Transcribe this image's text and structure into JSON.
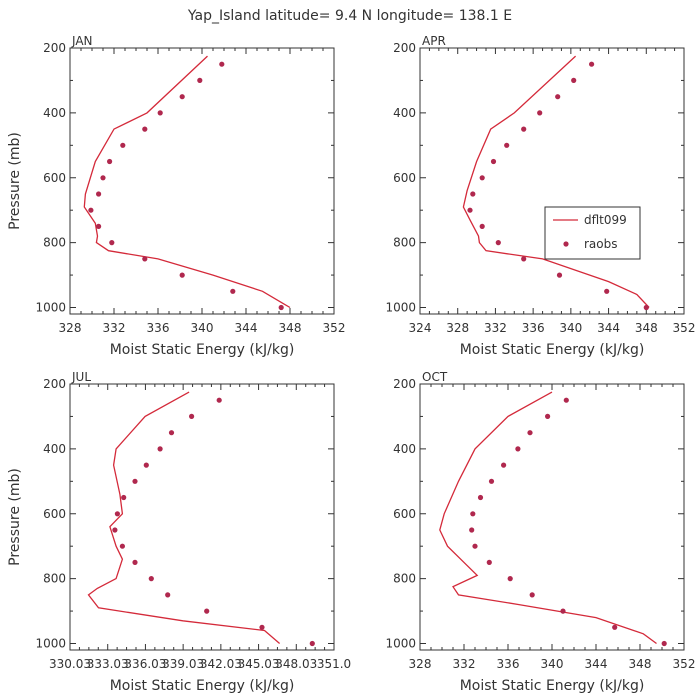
{
  "title": "Yap_Island  latitude= 9.4 N longitude= 138.1 E",
  "legend": {
    "model_label": "dflt099",
    "obs_label": "raobs",
    "model_color": "#d42a3a",
    "obs_color": "#b0284e"
  },
  "chart_data": [
    {
      "type": "line",
      "panel": "JAN",
      "xlabel": "Moist Static Energy (kJ/kg)",
      "ylabel": "Pressure (mb)",
      "xlim": [
        328,
        352
      ],
      "ylim": [
        1020,
        200
      ],
      "xticks": [
        "328",
        "332",
        "336",
        "340",
        "344",
        "348",
        "352"
      ],
      "yticks": [
        "200",
        "400",
        "600",
        "800",
        "1000"
      ],
      "series": [
        {
          "name": "dflt099",
          "kind": "line",
          "x": [
            340.5,
            335,
            332,
            330.3,
            329.4,
            329.3,
            330.3,
            330.5,
            330.4,
            331.5,
            336,
            341,
            345.5,
            347.5,
            348
          ],
          "y": [
            225,
            400,
            450,
            550,
            650,
            690,
            740,
            780,
            800,
            825,
            850,
            900,
            950,
            990,
            1000
          ]
        },
        {
          "name": "raobs",
          "kind": "scatter",
          "x": [
            341.8,
            339.8,
            338.2,
            336.2,
            334.8,
            332.8,
            331.6,
            331,
            330.6,
            329.9,
            330.6,
            331.8,
            334.8,
            338.2,
            342.8,
            347.2
          ],
          "y": [
            250,
            300,
            350,
            400,
            450,
            500,
            550,
            600,
            650,
            700,
            750,
            800,
            850,
            900,
            950,
            1000
          ]
        }
      ]
    },
    {
      "type": "line",
      "panel": "APR",
      "xlabel": "Moist Static Energy (kJ/kg)",
      "ylabel": "",
      "xlim": [
        324,
        352
      ],
      "ylim": [
        1020,
        200
      ],
      "xticks": [
        "324",
        "328",
        "332",
        "336",
        "340",
        "344",
        "348",
        "352"
      ],
      "yticks": [
        "200",
        "400",
        "600",
        "800",
        "1000"
      ],
      "series": [
        {
          "name": "dflt099",
          "kind": "line",
          "x": [
            340.5,
            334,
            331.5,
            330,
            329,
            328.6,
            329.3,
            330.2,
            330.3,
            331,
            337,
            344,
            347,
            348.3
          ],
          "y": [
            225,
            400,
            450,
            550,
            640,
            690,
            730,
            780,
            800,
            825,
            850,
            920,
            960,
            1000
          ]
        },
        {
          "name": "raobs",
          "kind": "scatter",
          "x": [
            342.2,
            340.3,
            338.6,
            336.7,
            335,
            333.2,
            331.8,
            330.6,
            329.6,
            329.3,
            330.6,
            332.3,
            335,
            338.8,
            343.8,
            348
          ],
          "y": [
            250,
            300,
            350,
            400,
            450,
            500,
            550,
            600,
            650,
            700,
            750,
            800,
            850,
            900,
            950,
            1000
          ]
        }
      ]
    },
    {
      "type": "line",
      "panel": "JUL",
      "xlabel": "Moist Static Energy (kJ/kg)",
      "ylabel": "Pressure (mb)",
      "xlim": [
        330.03,
        351.03
      ],
      "ylim": [
        1020,
        200
      ],
      "xticks": [
        "330.03",
        "333.03",
        "336.03",
        "339.03",
        "342.03",
        "345.03",
        "348.03",
        "351.0"
      ],
      "yticks": [
        "200",
        "400",
        "600",
        "800",
        "1000"
      ],
      "series": [
        {
          "name": "dflt099",
          "kind": "line",
          "x": [
            339.5,
            336,
            333.7,
            333.5,
            334,
            334.2,
            333.2,
            333.7,
            334.2,
            333.7,
            332.2,
            331.5,
            332.3,
            339,
            345.5,
            346.7
          ],
          "y": [
            225,
            300,
            400,
            450,
            540,
            600,
            640,
            700,
            740,
            800,
            830,
            850,
            890,
            930,
            960,
            1000
          ]
        },
        {
          "name": "raobs",
          "kind": "scatter",
          "x": [
            341.9,
            339.7,
            338.1,
            337.2,
            336.1,
            335.2,
            334.3,
            333.8,
            333.6,
            334.2,
            335.2,
            336.5,
            337.8,
            340.9,
            345.3,
            349.3
          ],
          "y": [
            250,
            300,
            350,
            400,
            450,
            500,
            550,
            600,
            650,
            700,
            750,
            800,
            850,
            900,
            950,
            1000
          ]
        }
      ]
    },
    {
      "type": "line",
      "panel": "OCT",
      "xlabel": "Moist Static Energy (kJ/kg)",
      "ylabel": "",
      "xlim": [
        328,
        352
      ],
      "ylim": [
        1020,
        200
      ],
      "xticks": [
        "328",
        "332",
        "336",
        "340",
        "344",
        "348",
        "352"
      ],
      "yticks": [
        "200",
        "400",
        "600",
        "800",
        "1000"
      ],
      "series": [
        {
          "name": "dflt099",
          "kind": "line",
          "x": [
            340,
            336,
            333,
            331.5,
            330.2,
            329.8,
            330.5,
            332.3,
            333.2,
            331,
            331.5,
            337,
            344,
            348.3,
            349.5
          ],
          "y": [
            225,
            300,
            400,
            500,
            600,
            650,
            700,
            760,
            790,
            825,
            850,
            880,
            920,
            970,
            1000
          ]
        },
        {
          "name": "raobs",
          "kind": "scatter",
          "x": [
            341.3,
            339.6,
            338,
            336.9,
            335.6,
            334.5,
            333.5,
            332.8,
            332.7,
            333,
            334.3,
            336.2,
            338.2,
            341,
            345.7,
            350.2
          ],
          "y": [
            250,
            300,
            350,
            400,
            450,
            500,
            550,
            600,
            650,
            700,
            750,
            800,
            850,
            900,
            950,
            1000
          ]
        }
      ]
    }
  ]
}
